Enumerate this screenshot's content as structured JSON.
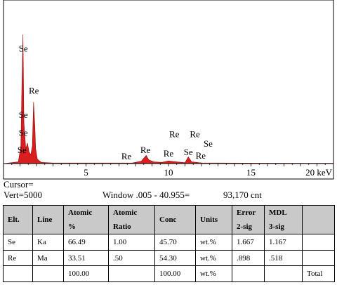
{
  "chart_data": {
    "type": "line",
    "title": "",
    "xlabel": "",
    "ylabel": "",
    "x_unit": "keV",
    "xlim": [
      0,
      20
    ],
    "x_ticks": [
      {
        "value": 5,
        "label": "5"
      },
      {
        "value": 10,
        "label": "10"
      },
      {
        "value": 15,
        "label": "15"
      },
      {
        "value": 20,
        "label": "20 keV"
      }
    ],
    "y_full_scale": 5000,
    "fill_color": "#d81e1e",
    "series": [
      {
        "points": [
          [
            0.0,
            0
          ],
          [
            0.9,
            60
          ],
          [
            1.05,
            600
          ],
          [
            1.12,
            2800
          ],
          [
            1.18,
            4400
          ],
          [
            1.24,
            1400
          ],
          [
            1.35,
            500
          ],
          [
            1.45,
            700
          ],
          [
            1.55,
            400
          ],
          [
            1.65,
            300
          ],
          [
            1.75,
            600
          ],
          [
            1.82,
            2100
          ],
          [
            1.87,
            1600
          ],
          [
            1.9,
            1300
          ],
          [
            1.95,
            500
          ],
          [
            2.05,
            150
          ],
          [
            2.3,
            40
          ],
          [
            3.0,
            20
          ],
          [
            6.0,
            20
          ],
          [
            7.8,
            20
          ],
          [
            8.35,
            80
          ],
          [
            8.65,
            280
          ],
          [
            8.8,
            130
          ],
          [
            9.1,
            60
          ],
          [
            9.6,
            40
          ],
          [
            10.0,
            90
          ],
          [
            10.3,
            70
          ],
          [
            11.0,
            30
          ],
          [
            11.2,
            230
          ],
          [
            11.4,
            60
          ],
          [
            12.0,
            25
          ],
          [
            13.0,
            20
          ],
          [
            20.0,
            10
          ]
        ]
      }
    ],
    "peak_labels": [
      {
        "element": "Se",
        "x": 1.2,
        "y": 3820
      },
      {
        "element": "Re",
        "x": 1.84,
        "y": 2380
      },
      {
        "element": "Se",
        "x": 1.2,
        "y": 1550
      },
      {
        "element": "Se",
        "x": 1.2,
        "y": 940
      },
      {
        "element": "Se",
        "x": 1.12,
        "y": 360
      },
      {
        "element": "Re",
        "x": 7.45,
        "y": 140
      },
      {
        "element": "Re",
        "x": 8.6,
        "y": 360
      },
      {
        "element": "Re",
        "x": 10.0,
        "y": 240
      },
      {
        "element": "Re",
        "x": 10.35,
        "y": 900
      },
      {
        "element": "Re",
        "x": 11.6,
        "y": 900
      },
      {
        "element": "Se",
        "x": 11.2,
        "y": 290
      },
      {
        "element": "Re",
        "x": 11.95,
        "y": 170
      },
      {
        "element": "Se",
        "x": 12.4,
        "y": 580
      }
    ]
  },
  "status": {
    "cursor": "Cursor=",
    "vert": "Vert=5000",
    "window": "Window .005 - 40.955=",
    "counts": "93,170 cnt"
  },
  "table": {
    "headers": {
      "elt": "Elt.",
      "line": "Line",
      "atomic_pct": [
        "Atomic",
        "%"
      ],
      "atomic_ratio": [
        "Atomic",
        "Ratio"
      ],
      "conc": "Conc",
      "units": "Units",
      "error": [
        "Error",
        "2-sig"
      ],
      "mdl": [
        "MDL",
        "3-sig"
      ]
    },
    "rows": [
      {
        "elt": "Se",
        "line": "Ka",
        "atomic_pct": "66.49",
        "atomic_ratio": "1.00",
        "conc": "45.70",
        "units": "wt.%",
        "error": "1.667",
        "mdl": "1.167",
        "total": ""
      },
      {
        "elt": "Re",
        "line": "Ma",
        "atomic_pct": "33.51",
        "atomic_ratio": ".50",
        "conc": "54.30",
        "units": "wt.%",
        "error": ".898",
        "mdl": ".518",
        "total": ""
      },
      {
        "elt": "",
        "line": "",
        "atomic_pct": "100.00",
        "atomic_ratio": "",
        "conc": "100.00",
        "units": "wt.%",
        "error": "",
        "mdl": "",
        "total": "Total"
      }
    ]
  }
}
